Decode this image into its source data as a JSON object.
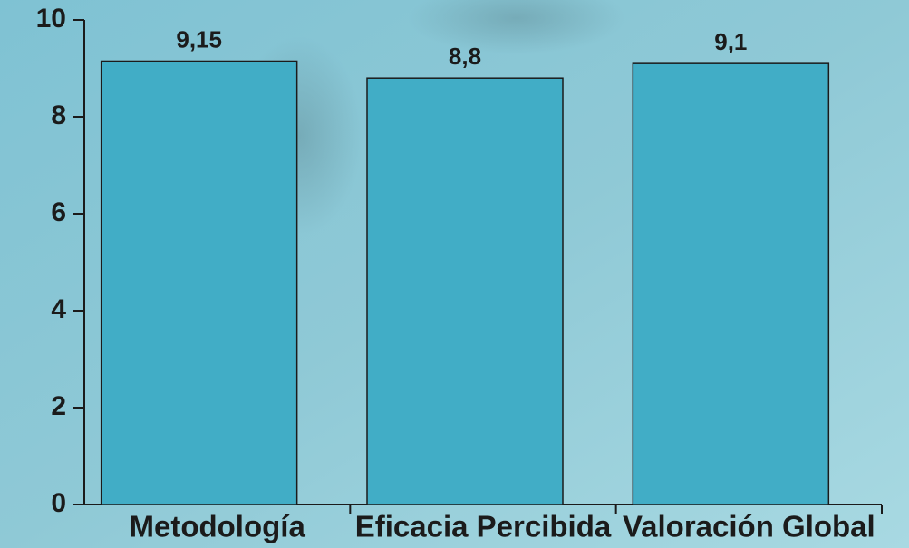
{
  "chart_data": {
    "type": "bar",
    "categories": [
      "Metodología",
      "Eficacia Percibida",
      "Valoración Global"
    ],
    "values": [
      9.15,
      8.8,
      9.1
    ],
    "value_labels": [
      "9,15",
      "8,8",
      "9,1"
    ],
    "color": "#41adc6",
    "ylim": [
      0,
      10
    ],
    "yticks": [
      0,
      2,
      4,
      6,
      8,
      10
    ],
    "grid": false
  }
}
